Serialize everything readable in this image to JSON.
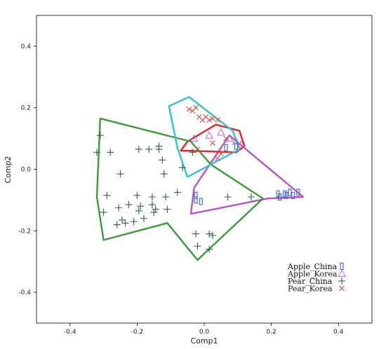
{
  "chart_data": {
    "type": "scatter",
    "title": "",
    "xlabel": "Comp1",
    "ylabel": "Comp2",
    "xlim": [
      -0.5,
      0.5
    ],
    "ylim": [
      -0.5,
      0.5
    ],
    "xticks": [
      -0.4,
      -0.2,
      0.0,
      0.2,
      0.4
    ],
    "yticks": [
      -0.4,
      -0.2,
      0.0,
      0.2,
      0.4
    ],
    "xtick_labels": [
      "-0.4",
      "-0.2",
      "0.0",
      "0.2",
      "0.4"
    ],
    "ytick_labels": [
      "-0.4",
      "-0.2",
      "0.0",
      "0.2",
      "0.4"
    ],
    "grid": false,
    "legend_position": "bottom-right",
    "series": [
      {
        "name": "Apple_China",
        "marker": "rect",
        "color": "#3a5fcd",
        "hull_color": "#b455c2",
        "points": [
          [
            -0.025,
            -0.085
          ],
          [
            -0.025,
            -0.1
          ],
          [
            -0.01,
            -0.105
          ],
          [
            0.065,
            0.07
          ],
          [
            0.095,
            0.075
          ],
          [
            0.22,
            -0.08
          ],
          [
            0.225,
            -0.09
          ],
          [
            0.24,
            -0.08
          ],
          [
            0.245,
            -0.085
          ],
          [
            0.255,
            -0.075
          ],
          [
            0.265,
            -0.085
          ],
          [
            0.28,
            -0.075
          ]
        ],
        "hull": [
          [
            -0.04,
            -0.145
          ],
          [
            0.19,
            -0.095
          ],
          [
            0.295,
            -0.09
          ],
          [
            0.075,
            0.11
          ],
          [
            -0.03,
            -0.06
          ]
        ]
      },
      {
        "name": "Apple_Korea",
        "marker": "triangle",
        "color": "#c06ac0",
        "hull_color": "#e8212b",
        "points": [
          [
            0.015,
            0.11
          ],
          [
            0.05,
            0.12
          ],
          [
            0.075,
            0.1
          ],
          [
            0.095,
            0.09
          ],
          [
            0.11,
            0.08
          ],
          [
            -0.03,
            0.1
          ]
        ],
        "hull": [
          [
            -0.07,
            0.06
          ],
          [
            -0.05,
            0.09
          ],
          [
            0.035,
            0.145
          ],
          [
            0.105,
            0.125
          ],
          [
            0.12,
            0.075
          ],
          [
            0.095,
            0.055
          ],
          [
            -0.04,
            0.06
          ]
        ]
      },
      {
        "name": "Pear_China",
        "marker": "plus",
        "color": "#2e5e4e",
        "hull_color": "#3a9a3a",
        "points": [
          [
            -0.32,
            0.055
          ],
          [
            -0.31,
            0.11
          ],
          [
            -0.3,
            -0.14
          ],
          [
            -0.29,
            -0.085
          ],
          [
            -0.28,
            0.055
          ],
          [
            -0.26,
            -0.18
          ],
          [
            -0.255,
            -0.125
          ],
          [
            -0.25,
            -0.015
          ],
          [
            -0.245,
            -0.165
          ],
          [
            -0.235,
            -0.175
          ],
          [
            -0.225,
            -0.115
          ],
          [
            -0.21,
            -0.17
          ],
          [
            -0.2,
            -0.085
          ],
          [
            -0.195,
            -0.135
          ],
          [
            -0.195,
            0.065
          ],
          [
            -0.19,
            -0.12
          ],
          [
            -0.18,
            -0.16
          ],
          [
            -0.165,
            0.065
          ],
          [
            -0.155,
            -0.09
          ],
          [
            -0.145,
            -0.13
          ],
          [
            -0.155,
            -0.115
          ],
          [
            -0.15,
            -0.14
          ],
          [
            -0.115,
            -0.09
          ],
          [
            -0.135,
            0.075
          ],
          [
            -0.135,
            0.065
          ],
          [
            -0.125,
            0.03
          ],
          [
            -0.12,
            -0.015
          ],
          [
            -0.11,
            -0.13
          ],
          [
            -0.08,
            -0.075
          ],
          [
            -0.065,
            0.005
          ],
          [
            -0.035,
            0.055
          ],
          [
            -0.025,
            -0.21
          ],
          [
            -0.02,
            -0.25
          ],
          [
            0.015,
            -0.21
          ],
          [
            0.015,
            -0.26
          ],
          [
            0.025,
            -0.215
          ],
          [
            0.07,
            -0.09
          ],
          [
            0.14,
            -0.09
          ]
        ],
        "hull": [
          [
            -0.31,
            0.165
          ],
          [
            -0.04,
            0.09
          ],
          [
            0.02,
            0.015
          ],
          [
            0.175,
            -0.095
          ],
          [
            -0.02,
            -0.295
          ],
          [
            -0.11,
            -0.175
          ],
          [
            -0.3,
            -0.23
          ],
          [
            -0.32,
            -0.09
          ]
        ]
      },
      {
        "name": "Pear_Korea",
        "marker": "x",
        "color": "#d0524a",
        "hull_color": "#2ec4cc",
        "points": [
          [
            -0.045,
            0.195
          ],
          [
            -0.035,
            0.19
          ],
          [
            -0.025,
            0.2
          ],
          [
            -0.015,
            0.17
          ],
          [
            -0.005,
            0.16
          ],
          [
            0.005,
            0.17
          ],
          [
            0.015,
            0.16
          ],
          [
            0.025,
            0.165
          ],
          [
            0.04,
            0.16
          ],
          [
            0.025,
            0.085
          ],
          [
            -0.02,
            0.065
          ],
          [
            0.04,
            0.035
          ],
          [
            0.05,
            0.05
          ],
          [
            0.065,
            0.1
          ]
        ],
        "hull": [
          [
            -0.105,
            0.205
          ],
          [
            -0.045,
            0.235
          ],
          [
            0.085,
            0.125
          ],
          [
            0.105,
            0.065
          ],
          [
            -0.05,
            -0.025
          ],
          [
            -0.08,
            0.07
          ]
        ]
      }
    ]
  }
}
